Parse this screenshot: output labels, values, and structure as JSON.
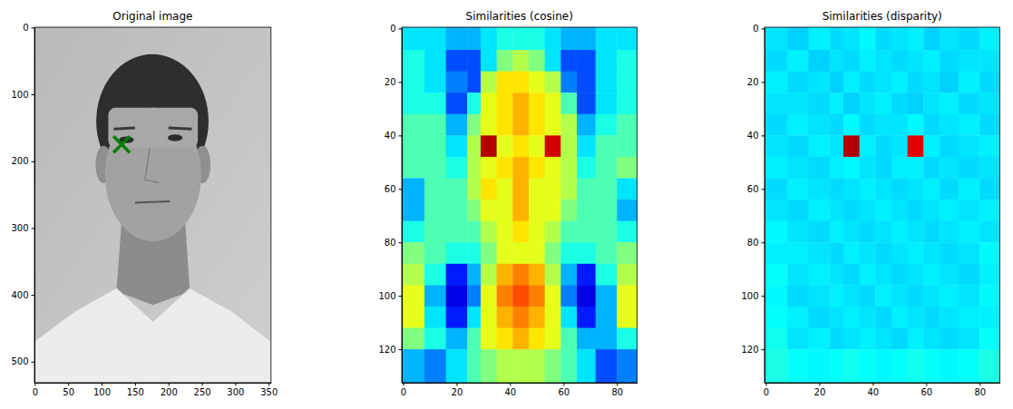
{
  "chart_data": [
    {
      "type": "image",
      "title": "Original image",
      "xlim": [
        -0.5,
        353.5
      ],
      "ylim": [
        531.5,
        -0.5
      ],
      "xticks": [
        0,
        50,
        100,
        150,
        200,
        250,
        300,
        350
      ],
      "yticks": [
        0,
        100,
        200,
        300,
        400,
        500
      ],
      "x": [
        130
      ],
      "y": [
        175
      ],
      "color": "green",
      "marker": "x"
    },
    {
      "type": "heatmap",
      "title": "Similarities (cosine)",
      "xlim": [
        -0.5,
        87.5
      ],
      "ylim": [
        132.5,
        -0.5
      ],
      "xticks": [
        0,
        20,
        40,
        60,
        80
      ],
      "yticks": [
        0,
        20,
        40,
        60,
        80,
        100,
        120
      ],
      "x_edges": [
        -0.5,
        8,
        16,
        24,
        29,
        35,
        41,
        47,
        53,
        59,
        65,
        72,
        80,
        87.5
      ],
      "y_edges": [
        -0.5,
        8,
        16,
        24,
        32,
        40,
        48,
        56,
        64,
        72,
        80,
        88,
        96,
        104,
        112,
        120,
        132.5
      ],
      "zlim": [
        0,
        1
      ],
      "cells": [
        [
          0.35,
          0.35,
          0.3,
          0.3,
          0.35,
          0.4,
          0.4,
          0.4,
          0.35,
          0.3,
          0.3,
          0.35,
          0.35
        ],
        [
          0.4,
          0.35,
          0.2,
          0.2,
          0.35,
          0.5,
          0.55,
          0.5,
          0.35,
          0.2,
          0.2,
          0.35,
          0.4
        ],
        [
          0.4,
          0.35,
          0.25,
          0.2,
          0.55,
          0.65,
          0.65,
          0.6,
          0.55,
          0.25,
          0.2,
          0.35,
          0.4
        ],
        [
          0.4,
          0.4,
          0.2,
          0.4,
          0.6,
          0.65,
          0.7,
          0.65,
          0.6,
          0.45,
          0.2,
          0.35,
          0.4
        ],
        [
          0.45,
          0.45,
          0.3,
          0.5,
          0.6,
          0.65,
          0.7,
          0.65,
          0.6,
          0.55,
          0.3,
          0.4,
          0.45
        ],
        [
          0.45,
          0.45,
          0.35,
          0.55,
          0.95,
          0.6,
          0.65,
          0.6,
          0.92,
          0.55,
          0.35,
          0.45,
          0.45
        ],
        [
          0.45,
          0.45,
          0.4,
          0.55,
          0.6,
          0.65,
          0.7,
          0.65,
          0.6,
          0.55,
          0.4,
          0.45,
          0.5
        ],
        [
          0.3,
          0.45,
          0.45,
          0.55,
          0.65,
          0.6,
          0.7,
          0.6,
          0.6,
          0.55,
          0.45,
          0.45,
          0.35
        ],
        [
          0.3,
          0.45,
          0.45,
          0.5,
          0.6,
          0.6,
          0.7,
          0.6,
          0.6,
          0.5,
          0.45,
          0.45,
          0.3
        ],
        [
          0.4,
          0.45,
          0.45,
          0.45,
          0.55,
          0.6,
          0.65,
          0.6,
          0.55,
          0.45,
          0.45,
          0.45,
          0.4
        ],
        [
          0.5,
          0.45,
          0.4,
          0.4,
          0.5,
          0.6,
          0.6,
          0.6,
          0.5,
          0.4,
          0.4,
          0.45,
          0.5
        ],
        [
          0.55,
          0.4,
          0.15,
          0.3,
          0.55,
          0.7,
          0.75,
          0.7,
          0.55,
          0.3,
          0.15,
          0.4,
          0.55
        ],
        [
          0.6,
          0.3,
          0.1,
          0.25,
          0.6,
          0.75,
          0.8,
          0.75,
          0.6,
          0.25,
          0.1,
          0.3,
          0.6
        ],
        [
          0.6,
          0.35,
          0.15,
          0.35,
          0.6,
          0.7,
          0.75,
          0.7,
          0.6,
          0.35,
          0.15,
          0.3,
          0.6
        ],
        [
          0.5,
          0.4,
          0.3,
          0.45,
          0.6,
          0.65,
          0.7,
          0.65,
          0.6,
          0.45,
          0.3,
          0.3,
          0.4
        ],
        [
          0.3,
          0.25,
          0.35,
          0.45,
          0.5,
          0.55,
          0.55,
          0.55,
          0.5,
          0.45,
          0.35,
          0.2,
          0.25
        ]
      ]
    },
    {
      "type": "heatmap",
      "title": "Similarities (disparity)",
      "xlim": [
        -0.5,
        87.5
      ],
      "ylim": [
        132.5,
        -0.5
      ],
      "xticks": [
        0,
        20,
        40,
        60,
        80
      ],
      "yticks": [
        0,
        20,
        40,
        60,
        80,
        100,
        120
      ],
      "x_edges": [
        -0.5,
        8,
        16,
        24,
        29,
        35,
        41,
        47,
        53,
        59,
        65,
        72,
        80,
        87.5
      ],
      "y_edges": [
        -0.5,
        8,
        16,
        24,
        32,
        40,
        48,
        56,
        64,
        72,
        80,
        88,
        96,
        104,
        112,
        120,
        132.5
      ],
      "zlim": [
        0,
        1
      ],
      "cells": [
        [
          0.35,
          0.33,
          0.36,
          0.34,
          0.35,
          0.37,
          0.34,
          0.35,
          0.36,
          0.33,
          0.35,
          0.34,
          0.36
        ],
        [
          0.34,
          0.36,
          0.33,
          0.35,
          0.34,
          0.36,
          0.35,
          0.34,
          0.35,
          0.36,
          0.34,
          0.35,
          0.35
        ],
        [
          0.36,
          0.34,
          0.35,
          0.33,
          0.36,
          0.34,
          0.35,
          0.36,
          0.34,
          0.35,
          0.33,
          0.36,
          0.34
        ],
        [
          0.35,
          0.35,
          0.34,
          0.36,
          0.33,
          0.35,
          0.36,
          0.34,
          0.33,
          0.35,
          0.36,
          0.34,
          0.35
        ],
        [
          0.34,
          0.36,
          0.35,
          0.34,
          0.37,
          0.34,
          0.35,
          0.35,
          0.37,
          0.34,
          0.35,
          0.36,
          0.34
        ],
        [
          0.35,
          0.34,
          0.36,
          0.35,
          0.95,
          0.36,
          0.34,
          0.35,
          0.9,
          0.36,
          0.34,
          0.35,
          0.36
        ],
        [
          0.36,
          0.35,
          0.34,
          0.36,
          0.37,
          0.35,
          0.34,
          0.36,
          0.36,
          0.34,
          0.35,
          0.34,
          0.35
        ],
        [
          0.34,
          0.36,
          0.35,
          0.34,
          0.35,
          0.36,
          0.35,
          0.34,
          0.35,
          0.36,
          0.34,
          0.36,
          0.34
        ],
        [
          0.35,
          0.34,
          0.36,
          0.35,
          0.34,
          0.35,
          0.36,
          0.35,
          0.34,
          0.35,
          0.36,
          0.35,
          0.36
        ],
        [
          0.37,
          0.35,
          0.34,
          0.36,
          0.35,
          0.34,
          0.35,
          0.36,
          0.35,
          0.34,
          0.35,
          0.36,
          0.35
        ],
        [
          0.36,
          0.36,
          0.35,
          0.34,
          0.36,
          0.35,
          0.34,
          0.35,
          0.36,
          0.35,
          0.34,
          0.35,
          0.37
        ],
        [
          0.38,
          0.35,
          0.36,
          0.35,
          0.34,
          0.36,
          0.35,
          0.34,
          0.35,
          0.36,
          0.35,
          0.34,
          0.36
        ],
        [
          0.37,
          0.34,
          0.35,
          0.36,
          0.35,
          0.34,
          0.36,
          0.35,
          0.34,
          0.35,
          0.36,
          0.35,
          0.37
        ],
        [
          0.38,
          0.36,
          0.34,
          0.35,
          0.36,
          0.35,
          0.34,
          0.36,
          0.35,
          0.34,
          0.35,
          0.36,
          0.36
        ],
        [
          0.39,
          0.35,
          0.36,
          0.34,
          0.35,
          0.36,
          0.35,
          0.34,
          0.36,
          0.35,
          0.34,
          0.35,
          0.38
        ],
        [
          0.4,
          0.38,
          0.37,
          0.38,
          0.39,
          0.38,
          0.37,
          0.38,
          0.39,
          0.38,
          0.37,
          0.38,
          0.4
        ]
      ]
    }
  ]
}
